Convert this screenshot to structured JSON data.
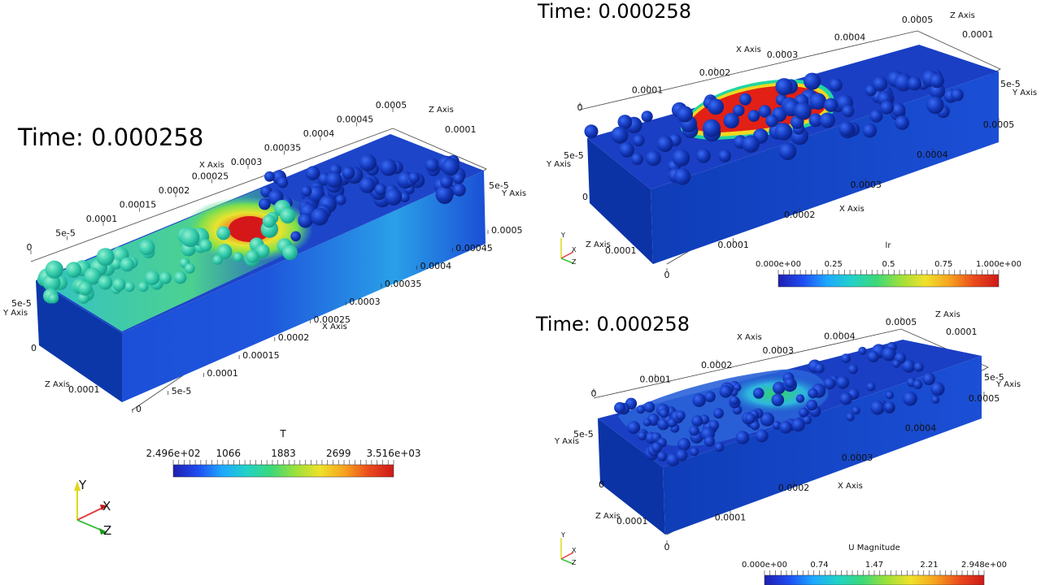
{
  "colors": {
    "background": "#ffffff",
    "box_dark": "#0a2a9a",
    "box_mid": "#1544c8",
    "colormap": [
      "#1f1fb0",
      "#1f4cf0",
      "#1ea8ff",
      "#22d2c8",
      "#3bd87a",
      "#9ee03a",
      "#f0e12a",
      "#f6a21f",
      "#ea4a1c",
      "#cc1a1a"
    ]
  },
  "views": [
    {
      "time_text": "Time: 0.000258",
      "field_title": "T",
      "scalar_ticks": [
        "2.496e+02",
        "1066",
        "1883",
        "2699",
        "3.516e+03"
      ],
      "axis_titles": {
        "x": "X Axis",
        "y": "Y Axis",
        "z": "Z Axis"
      },
      "top_x_ticks": [
        "0",
        "5e-5",
        "0.0001",
        "0.00015",
        "0.0002",
        "0.00025",
        "0.0003",
        "0.00035",
        "0.0004",
        "0.00045",
        "0.0005"
      ],
      "front_x_ticks": [
        "0",
        "5e-5",
        "0.0001",
        "0.00015",
        "0.0002",
        "0.00025",
        "0.0003",
        "0.00035",
        "0.0004",
        "0.00045",
        "0.0005"
      ],
      "z_ticks": [
        "0",
        "0.0001"
      ],
      "y_ticks": [
        "0",
        "5e-5"
      ],
      "top_z_ticks": [
        "0.0001"
      ],
      "right_y_ticks": [
        "5e-5"
      ],
      "orientation": {
        "x": "X",
        "y": "Y",
        "z": "Z"
      }
    },
    {
      "time_text": "Time: 0.000258",
      "field_title": "lr",
      "scalar_ticks": [
        "0.000e+00",
        "0.25",
        "0.5",
        "0.75",
        "1.000e+00"
      ],
      "axis_titles": {
        "x": "X Axis",
        "y": "Y Axis",
        "z": "Z Axis"
      },
      "top_x_ticks": [
        "0",
        "0.0001",
        "0.0002",
        "0.0003",
        "0.0004",
        "0.0005"
      ],
      "front_x_ticks": [
        "0",
        "0.0001",
        "0.0002",
        "0.0003",
        "0.0004",
        "0.0005"
      ],
      "z_ticks": [
        "0",
        "0.0001"
      ],
      "y_ticks": [
        "0",
        "5e-5"
      ],
      "top_z_ticks": [
        "0.0001"
      ],
      "right_y_ticks": [
        "5e-5",
        "0"
      ],
      "orientation": {
        "x": "X",
        "y": "Y",
        "z": "Z"
      }
    },
    {
      "time_text": "Time: 0.000258",
      "field_title": "U Magnitude",
      "scalar_ticks": [
        "0.000e+00",
        "0.74",
        "1.47",
        "2.21",
        "2.948e+00"
      ],
      "axis_titles": {
        "x": "X Axis",
        "y": "Y Axis",
        "z": "Z Axis"
      },
      "top_x_ticks": [
        "0",
        "0.0001",
        "0.0002",
        "0.0003",
        "0.0004",
        "0.0005"
      ],
      "front_x_ticks": [
        "0",
        "0.0001",
        "0.0002",
        "0.0003",
        "0.0004",
        "0.0005"
      ],
      "z_ticks": [
        "0",
        "0.0001"
      ],
      "y_ticks": [
        "0",
        "5e-5"
      ],
      "top_z_ticks": [
        "0.0001"
      ],
      "right_y_ticks": [
        "5e-5",
        "0"
      ],
      "orientation": {
        "x": "X",
        "y": "Y",
        "z": "Z"
      }
    }
  ]
}
